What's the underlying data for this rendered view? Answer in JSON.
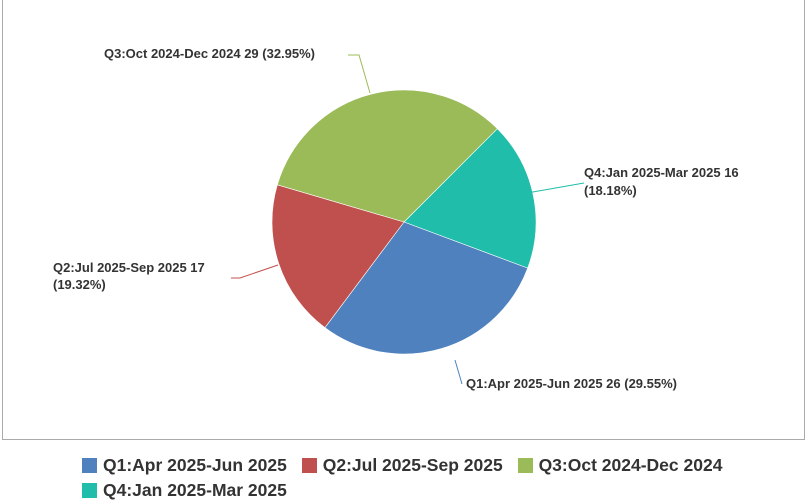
{
  "chart_data": {
    "type": "pie",
    "start_angle_deg": -45,
    "direction": "clockwise",
    "slices": [
      {
        "name": "Q4:Jan 2025-Mar 2025",
        "value": 16,
        "percent": 18.18,
        "color": "#20BEAA",
        "label": "Q4:Jan 2025-Mar 2025 16",
        "label2": "(18.18%)"
      },
      {
        "name": "Q1:Apr 2025-Jun 2025",
        "value": 26,
        "percent": 29.55,
        "color": "#4E81BD",
        "label": "Q1:Apr 2025-Jun 2025 26 (29.55%)",
        "label2": ""
      },
      {
        "name": "Q2:Jul 2025-Sep 2025",
        "value": 17,
        "percent": 19.32,
        "color": "#C0504E",
        "label": "Q2:Jul 2025-Sep 2025 17",
        "label2": "(19.32%)"
      },
      {
        "name": "Q3:Oct 2024-Dec 2024",
        "value": 29,
        "percent": 32.95,
        "color": "#9BBB58",
        "label": "Q3:Oct 2024-Dec 2024 29 (32.95%)",
        "label2": ""
      }
    ],
    "legend": {
      "placement": "bottom",
      "entries": [
        {
          "label": "Q1:Apr 2025-Jun 2025",
          "color": "#4E81BD"
        },
        {
          "label": "Q2:Jul 2025-Sep 2025",
          "color": "#C0504E"
        },
        {
          "label": "Q3:Oct 2024-Dec 2024",
          "color": "#9BBB58"
        },
        {
          "label": "Q4:Jan 2025-Mar 2025",
          "color": "#20BEAA"
        }
      ]
    }
  }
}
